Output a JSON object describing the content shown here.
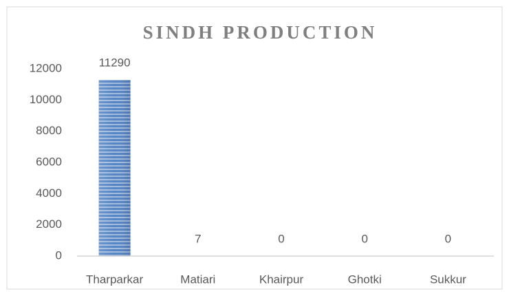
{
  "chart_data": {
    "type": "bar",
    "title": "SINDH PRODUCTION",
    "categories": [
      "Tharparkar",
      "Matiari",
      "Khairpur",
      "Ghotki",
      "Sukkur"
    ],
    "values": [
      11290,
      7,
      0,
      0,
      0
    ],
    "color": "#5584c4",
    "ylim": [
      0,
      12000
    ],
    "yticks": [
      0,
      2000,
      4000,
      6000,
      8000,
      10000,
      12000
    ],
    "grid": false
  }
}
